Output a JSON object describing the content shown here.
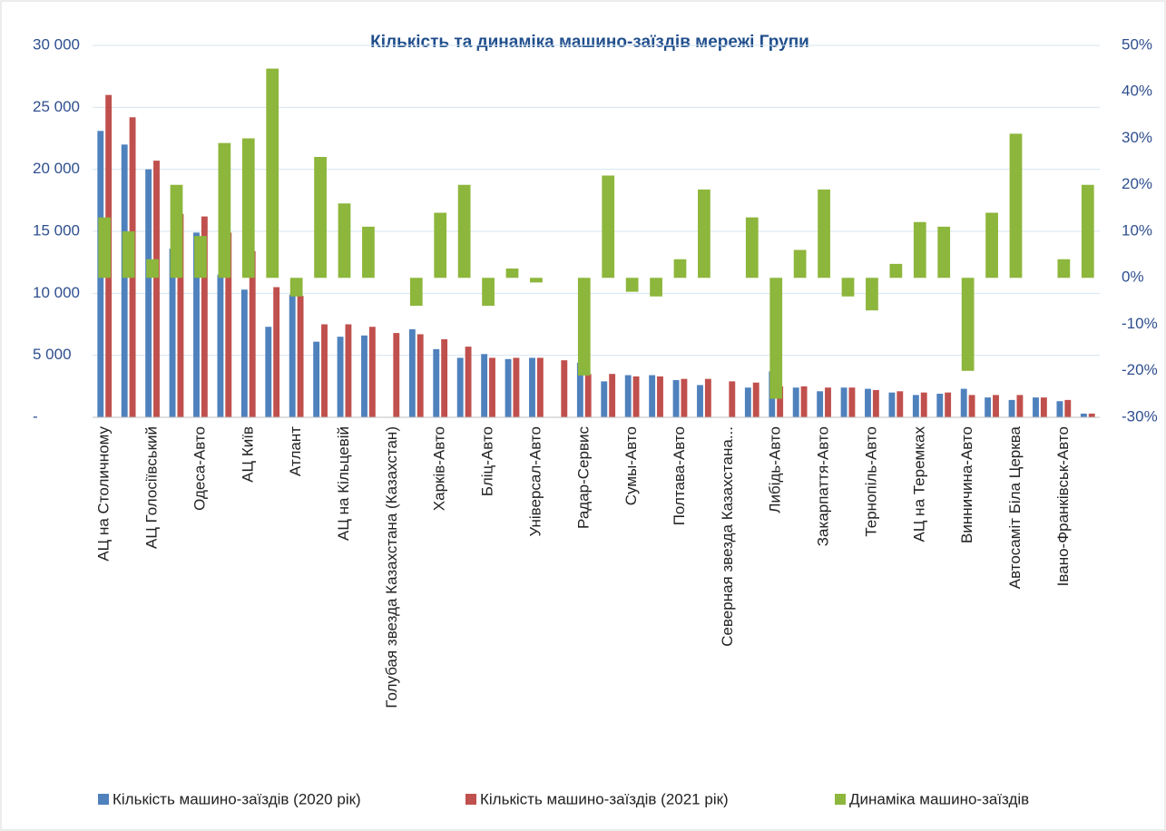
{
  "chart_data": {
    "type": "bar",
    "title": "Кількість та динаміка машино-заїздів мережі Групи",
    "categories": [
      "АЦ на Столичному",
      null,
      "АЦ Голосіївський",
      null,
      "Одеса-Авто",
      null,
      "АЦ Київ",
      null,
      "Атлант",
      null,
      "АЦ на Кільцевій",
      null,
      "Голубая звезда Казахстана (Казахстан)",
      null,
      "Харків-Авто",
      null,
      "Бліц-Авто",
      null,
      "Універсал-Авто",
      null,
      "Радар-Сервис",
      null,
      "Сумы-Авто",
      null,
      "Полтава-Авто",
      null,
      "Северная звезда Казахстана...",
      null,
      "Либідь-Авто",
      null,
      "Закарпаття-Авто",
      null,
      "Тернопіль-Авто",
      null,
      "АЦ на Теремках",
      null,
      "Винничина-Авто",
      null,
      "Автосаміт Біла Церква",
      null,
      "Івано-Франківськ-Авто",
      null
    ],
    "series": [
      {
        "name": "Кількість машино-заїздів (2020 рік)",
        "color": "#4f81bd",
        "values": [
          23100,
          22000,
          20000,
          13600,
          14900,
          11500,
          10300,
          7300,
          9900,
          6100,
          6500,
          6600,
          null,
          7100,
          5500,
          4800,
          5100,
          4700,
          4800,
          null,
          4400,
          2900,
          3400,
          3400,
          3000,
          2600,
          null,
          2400,
          3700,
          2400,
          2100,
          2400,
          2300,
          2000,
          1800,
          1900,
          2300,
          1600,
          1400,
          1600,
          1300,
          300
        ]
      },
      {
        "name": "Кількість машино-заїздів (2021 рік)",
        "color": "#c0504d",
        "values": [
          26000,
          24200,
          20700,
          16400,
          16200,
          14900,
          13400,
          10500,
          9800,
          7500,
          7500,
          7300,
          6800,
          6700,
          6300,
          5700,
          4800,
          4800,
          4800,
          4600,
          3500,
          3500,
          3300,
          3300,
          3100,
          3100,
          2900,
          2800,
          2500,
          2500,
          2400,
          2400,
          2200,
          2100,
          2000,
          2000,
          1800,
          1800,
          1800,
          1600,
          1400,
          300
        ]
      },
      {
        "name": "Динаміка машино-заїздів",
        "color": "#8db63c",
        "axis": "y2",
        "values": [
          13,
          10,
          4,
          20,
          9,
          29,
          30,
          45,
          -4,
          26,
          16,
          11,
          null,
          -6,
          14,
          20,
          -6,
          2,
          -1,
          null,
          -21,
          22,
          -3,
          -4,
          4,
          19,
          null,
          13,
          -26,
          6,
          19,
          -4,
          -7,
          3,
          12,
          11,
          -20,
          14,
          31,
          null,
          4,
          20
        ]
      }
    ],
    "ylim": [
      0,
      30000
    ],
    "yticks": [
      {
        "value": 0,
        "label": "-"
      },
      {
        "value": 5000,
        "label": "5 000"
      },
      {
        "value": 10000,
        "label": "10 000"
      },
      {
        "value": 15000,
        "label": "15 000"
      },
      {
        "value": 20000,
        "label": "20 000"
      },
      {
        "value": 25000,
        "label": "25 000"
      },
      {
        "value": 30000,
        "label": "30 000"
      }
    ],
    "y2lim": [
      -30,
      50
    ],
    "y2ticks": [
      {
        "value": -30,
        "label": "-30%"
      },
      {
        "value": -20,
        "label": "-20%"
      },
      {
        "value": -10,
        "label": "-10%"
      },
      {
        "value": 0,
        "label": "0%"
      },
      {
        "value": 10,
        "label": "10%"
      },
      {
        "value": 20,
        "label": "20%"
      },
      {
        "value": 30,
        "label": "30%"
      },
      {
        "value": 40,
        "label": "40%"
      },
      {
        "value": 50,
        "label": "50%"
      }
    ],
    "grid": true,
    "legend": "bottom"
  }
}
